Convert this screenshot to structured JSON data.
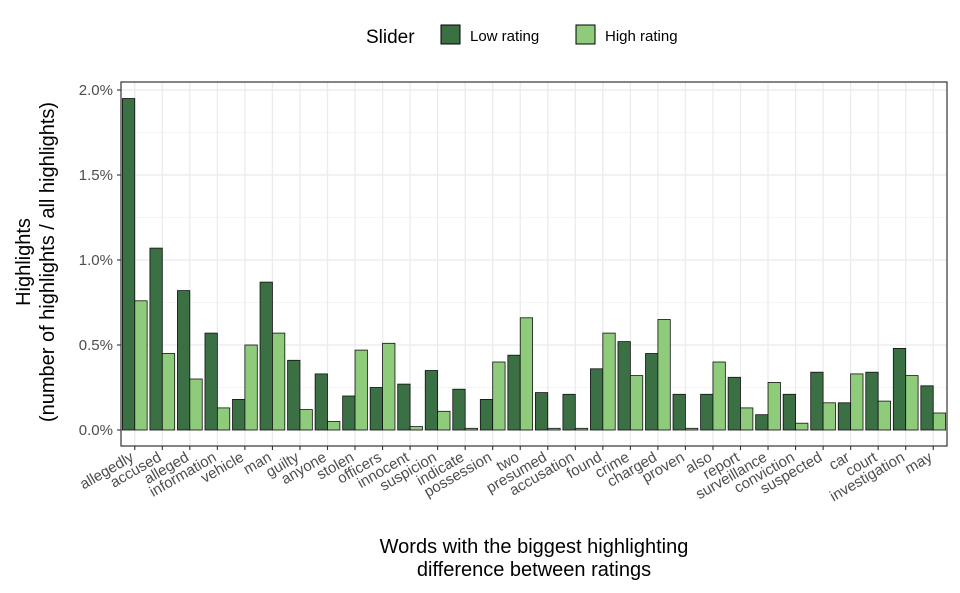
{
  "chart_data": {
    "type": "bar",
    "title": "",
    "xlabel": [
      "Words with the biggest highlighting",
      "difference between ratings"
    ],
    "ylabel": [
      "Highlights",
      "(number of highlights / all highlights)"
    ],
    "ylim": [
      0,
      0.0201
    ],
    "yticks": [
      0,
      0.005,
      0.01,
      0.015,
      0.02
    ],
    "ytick_labels": [
      "0.0%",
      "0.5%",
      "1.0%",
      "1.5%",
      "2.0%"
    ],
    "grid": true,
    "legend": {
      "title": "Slider",
      "position": "top",
      "entries": [
        "Low rating",
        "High rating"
      ]
    },
    "colors": {
      "low": "#3a7043",
      "high": "#8ecb7b",
      "grid": "#ebebeb",
      "border": "#333333"
    },
    "categories": [
      "allegedly",
      "accused",
      "alleged",
      "information",
      "vehicle",
      "man",
      "guilty",
      "anyone",
      "stolen",
      "officers",
      "innocent",
      "suspicion",
      "indicate",
      "possession",
      "two",
      "presumed",
      "accusation",
      "found",
      "crime",
      "charged",
      "proven",
      "also",
      "report",
      "surveillance",
      "conviction",
      "suspected",
      "car",
      "court",
      "investigation",
      "may"
    ],
    "series": [
      {
        "name": "Low rating",
        "values": [
          0.0195,
          0.0107,
          0.0082,
          0.0057,
          0.0018,
          0.0087,
          0.0041,
          0.0033,
          0.002,
          0.0025,
          0.0027,
          0.0035,
          0.0024,
          0.0018,
          0.0044,
          0.0022,
          0.0021,
          0.0036,
          0.0052,
          0.0045,
          0.0021,
          0.0021,
          0.0031,
          0.0009,
          0.0021,
          0.0034,
          0.0016,
          0.0034,
          0.0048,
          0.0026
        ]
      },
      {
        "name": "High rating",
        "values": [
          0.0076,
          0.0045,
          0.003,
          0.0013,
          0.005,
          0.0057,
          0.0012,
          0.0005,
          0.0047,
          0.0051,
          0.0002,
          0.0011,
          0.0001,
          0.004,
          0.0066,
          0.0001,
          0.0001,
          0.0057,
          0.0032,
          0.0065,
          0.0001,
          0.004,
          0.0013,
          0.0028,
          0.0004,
          0.0016,
          0.0033,
          0.0017,
          0.0032,
          0.001
        ]
      }
    ]
  }
}
